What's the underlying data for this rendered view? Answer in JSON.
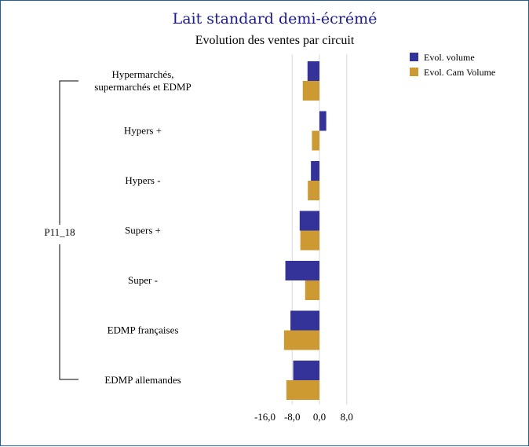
{
  "chart_data": {
    "type": "bar",
    "orientation": "horizontal",
    "title": "Lait standard demi-écrémé",
    "subtitle": "Evolution des ventes par circuit",
    "group_label": "P11_18",
    "categories": [
      [
        "Hypermarchés,",
        "supermarchés et EDMP"
      ],
      [
        "Hypers +"
      ],
      [
        "Hypers -"
      ],
      [
        "Supers +"
      ],
      [
        "Super -"
      ],
      [
        "EDMP françaises"
      ],
      [
        "EDMP allemandes"
      ]
    ],
    "series": [
      {
        "name": "Evol. volume",
        "color": "#333399",
        "values": [
          -3.5,
          2.0,
          -2.5,
          -5.8,
          -10.0,
          -8.5,
          -7.7
        ]
      },
      {
        "name": "Evol. Cam Volume",
        "color": "#cc9933",
        "values": [
          -4.9,
          -2.2,
          -3.4,
          -5.6,
          -4.2,
          -10.4,
          -9.7
        ]
      }
    ],
    "xlim": [
      -16,
      8
    ],
    "xticks": [
      -16,
      -8,
      0,
      8
    ],
    "xtick_labels": [
      "-16,0",
      "-8,0",
      "0,0",
      "8,0"
    ],
    "grid": "vertical",
    "legend_position": "top-right"
  }
}
